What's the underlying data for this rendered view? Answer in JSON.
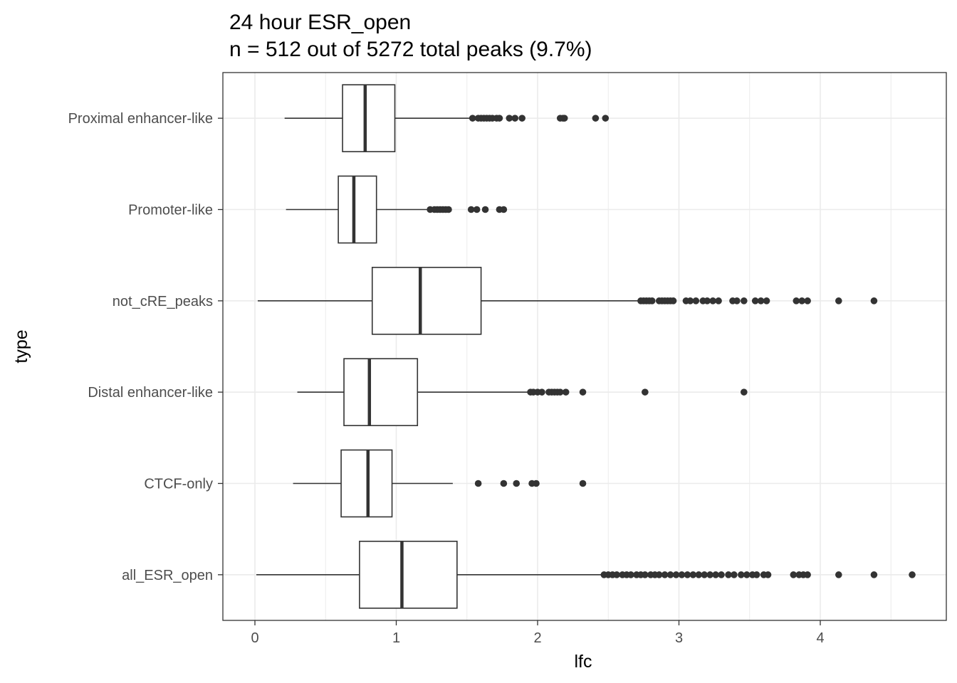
{
  "chart_data": {
    "type": "boxplot",
    "orientation": "horizontal",
    "title": "24 hour ESR_open",
    "subtitle": "n = 512 out of 5272 total peaks (9.7%)",
    "xlabel": "lfc",
    "ylabel": "type",
    "xlim": [
      -0.22,
      4.88
    ],
    "x_ticks": [
      "0",
      "1",
      "2",
      "3",
      "4"
    ],
    "grid": true,
    "categories": [
      "Proximal enhancer-like",
      "Promoter-like",
      "not_cRE_peaks",
      "Distal enhancer-like",
      "CTCF-only",
      "all_ESR_open"
    ],
    "series": [
      {
        "category": "Proximal enhancer-like",
        "whisker_low": 0.21,
        "q1": 0.62,
        "median": 0.78,
        "q3": 0.99,
        "whisker_high": 1.54,
        "outliers": [
          1.54,
          1.58,
          1.6,
          1.62,
          1.64,
          1.66,
          1.68,
          1.71,
          1.73,
          1.8,
          1.84,
          1.89,
          2.16,
          2.18,
          2.19,
          2.41,
          2.48
        ]
      },
      {
        "category": "Promoter-like",
        "whisker_low": 0.22,
        "q1": 0.59,
        "median": 0.7,
        "q3": 0.86,
        "whisker_high": 1.23,
        "outliers": [
          1.24,
          1.27,
          1.29,
          1.31,
          1.33,
          1.35,
          1.37,
          1.53,
          1.57,
          1.63,
          1.73,
          1.76
        ]
      },
      {
        "category": "not_cRE_peaks",
        "whisker_low": 0.02,
        "q1": 0.83,
        "median": 1.17,
        "q3": 1.6,
        "whisker_high": 2.72,
        "outliers": [
          2.73,
          2.75,
          2.77,
          2.79,
          2.81,
          2.86,
          2.88,
          2.9,
          2.92,
          2.94,
          2.96,
          3.05,
          3.08,
          3.12,
          3.17,
          3.2,
          3.24,
          3.28,
          3.38,
          3.41,
          3.46,
          3.54,
          3.58,
          3.62,
          3.83,
          3.87,
          3.91,
          4.13,
          4.38
        ]
      },
      {
        "category": "Distal enhancer-like",
        "whisker_low": 0.3,
        "q1": 0.63,
        "median": 0.81,
        "q3": 1.15,
        "whisker_high": 1.94,
        "outliers": [
          1.95,
          1.97,
          2.0,
          2.03,
          2.08,
          2.1,
          2.12,
          2.14,
          2.16,
          2.2,
          2.32,
          2.76,
          3.46
        ]
      },
      {
        "category": "CTCF-only",
        "whisker_low": 0.27,
        "q1": 0.61,
        "median": 0.8,
        "q3": 0.97,
        "whisker_high": 1.4,
        "outliers": [
          1.58,
          1.76,
          1.85,
          1.96,
          1.99,
          2.32
        ]
      },
      {
        "category": "all_ESR_open",
        "whisker_low": 0.01,
        "q1": 0.74,
        "median": 1.04,
        "q3": 1.43,
        "whisker_high": 2.46,
        "outliers": [
          2.47,
          2.5,
          2.53,
          2.56,
          2.6,
          2.63,
          2.66,
          2.7,
          2.73,
          2.76,
          2.8,
          2.83,
          2.86,
          2.9,
          2.94,
          2.98,
          3.02,
          3.06,
          3.1,
          3.14,
          3.18,
          3.22,
          3.26,
          3.3,
          3.35,
          3.39,
          3.44,
          3.48,
          3.52,
          3.55,
          3.6,
          3.63,
          3.81,
          3.85,
          3.88,
          3.91,
          4.13,
          4.38,
          4.65
        ]
      }
    ],
    "colors": {
      "box_fill": "#ffffff",
      "box_line": "#333333",
      "outlier": "#333333",
      "grid": "#ebebeb",
      "panel_border": "#333333",
      "tick_text": "#4d4d4d"
    }
  }
}
